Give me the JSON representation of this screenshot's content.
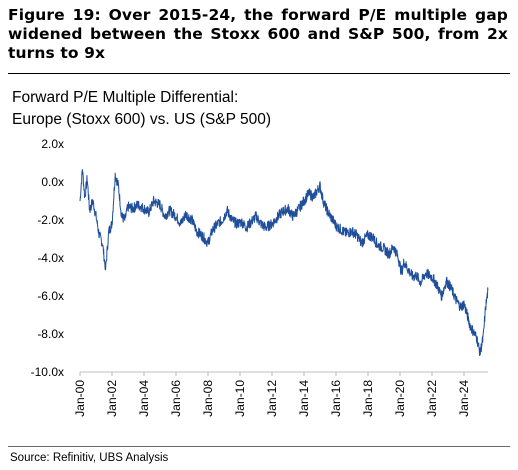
{
  "figure": {
    "title": "Figure 19: Over 2015-24, the forward P/E multiple gap widened between the Stoxx 600 and S&P 500, from 2x turns to 9x",
    "source": "Source: Refinitiv, UBS Analysis"
  },
  "chart_data": {
    "type": "line",
    "title_lines": [
      "Forward P/E Multiple Differential:",
      "Europe (Stoxx 600) vs. US (S&P 500)"
    ],
    "ylim": [
      -10,
      2
    ],
    "ytick_labels": [
      "2.0x",
      "0.0x",
      "-2.0x",
      "-4.0x",
      "-6.0x",
      "-8.0x",
      "-10.0x"
    ],
    "xlim": [
      2000.0,
      2025.5
    ],
    "xtick_labels": [
      "Jan-00",
      "Jan-02",
      "Jan-04",
      "Jan-06",
      "Jan-08",
      "Jan-10",
      "Jan-12",
      "Jan-14",
      "Jan-16",
      "Jan-18",
      "Jan-20",
      "Jan-22",
      "Jan-24"
    ],
    "line_color": "#1f4e9a",
    "grid": false,
    "legend": "none",
    "series": [
      {
        "x": [
          2000.0,
          2000.15,
          2000.3,
          2000.45,
          2000.6,
          2000.8,
          2001.0,
          2001.2,
          2001.4,
          2001.6,
          2001.8,
          2002.0,
          2002.2,
          2002.4,
          2002.6,
          2002.8,
          2003.0,
          2003.3,
          2003.6,
          2004.0,
          2004.3,
          2004.6,
          2005.0,
          2005.3,
          2005.6,
          2006.0,
          2006.3,
          2006.6,
          2007.0,
          2007.3,
          2007.6,
          2008.0,
          2008.3,
          2008.6,
          2008.9,
          2009.2,
          2009.5,
          2009.8,
          2010.1,
          2010.4,
          2010.7,
          2011.0,
          2011.3,
          2011.6,
          2012.0,
          2012.3,
          2012.6,
          2013.0,
          2013.3,
          2013.6,
          2014.0,
          2014.3,
          2014.6,
          2015.0,
          2015.2,
          2015.5,
          2015.8,
          2016.0,
          2016.3,
          2016.6,
          2017.0,
          2017.3,
          2017.6,
          2018.0,
          2018.3,
          2018.6,
          2019.0,
          2019.3,
          2019.6,
          2019.9,
          2020.1,
          2020.25,
          2020.5,
          2020.8,
          2021.0,
          2021.3,
          2021.6,
          2022.0,
          2022.3,
          2022.6,
          2022.9,
          2023.2,
          2023.5,
          2023.8,
          2024.0,
          2024.2,
          2024.4,
          2024.6,
          2024.8,
          2025.0,
          2025.2,
          2025.35,
          2025.5
        ],
        "y": [
          -1.0,
          0.7,
          -0.8,
          0.2,
          -1.5,
          -1.0,
          -1.8,
          -2.8,
          -3.2,
          -4.6,
          -2.6,
          -2.2,
          0.4,
          -0.2,
          -1.8,
          -2.0,
          -1.3,
          -1.4,
          -1.2,
          -1.4,
          -1.6,
          -1.0,
          -1.2,
          -1.8,
          -1.5,
          -1.8,
          -2.2,
          -1.7,
          -2.0,
          -2.6,
          -2.8,
          -3.2,
          -2.5,
          -2.2,
          -2.0,
          -1.5,
          -2.0,
          -2.2,
          -2.1,
          -2.4,
          -2.1,
          -1.8,
          -2.2,
          -2.4,
          -2.2,
          -1.9,
          -1.6,
          -1.4,
          -1.8,
          -1.5,
          -1.0,
          -0.6,
          -0.8,
          -0.2,
          -1.0,
          -1.6,
          -2.0,
          -2.3,
          -2.5,
          -2.7,
          -2.6,
          -2.8,
          -3.2,
          -2.8,
          -2.9,
          -3.3,
          -3.5,
          -3.8,
          -3.4,
          -4.0,
          -4.8,
          -4.2,
          -4.6,
          -5.0,
          -4.9,
          -5.3,
          -4.8,
          -5.0,
          -5.4,
          -6.0,
          -5.2,
          -5.6,
          -6.2,
          -6.6,
          -6.4,
          -7.0,
          -7.6,
          -7.9,
          -8.2,
          -9.0,
          -8.2,
          -6.6,
          -5.7
        ]
      }
    ]
  }
}
